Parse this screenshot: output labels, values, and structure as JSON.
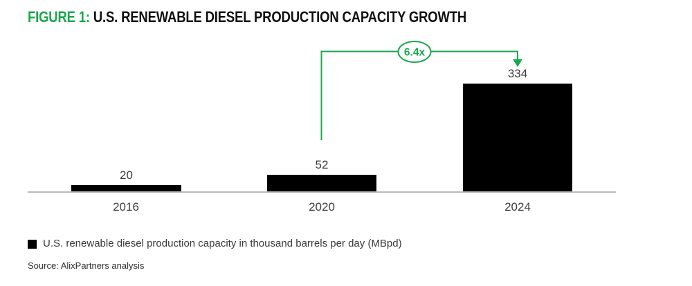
{
  "title": {
    "figure_label": "FIGURE 1:",
    "text": "U.S. RENEWABLE DIESEL PRODUCTION CAPACITY GROWTH"
  },
  "chart_data": {
    "type": "bar",
    "categories": [
      "2016",
      "2020",
      "2024"
    ],
    "values": [
      20,
      52,
      334
    ],
    "title": "U.S. RENEWABLE DIESEL PRODUCTION CAPACITY GROWTH",
    "xlabel": "",
    "ylabel": "",
    "ylim": [
      0,
      360
    ],
    "grid": false,
    "bar_color": "#000000",
    "annotation": {
      "label": "6.4x",
      "from_category": "2020",
      "to_category": "2024",
      "color": "#1AA84C"
    },
    "legend_position": "bottom"
  },
  "legend": {
    "label": "U.S. renewable diesel production capacity in thousand barrels per day (MBpd)",
    "swatch_color": "#000000"
  },
  "source": "Source: AlixPartners analysis",
  "colors": {
    "accent_green": "#1AA84C",
    "bar": "#000000",
    "axis": "#b9b9b9",
    "title_text": "#111111"
  }
}
